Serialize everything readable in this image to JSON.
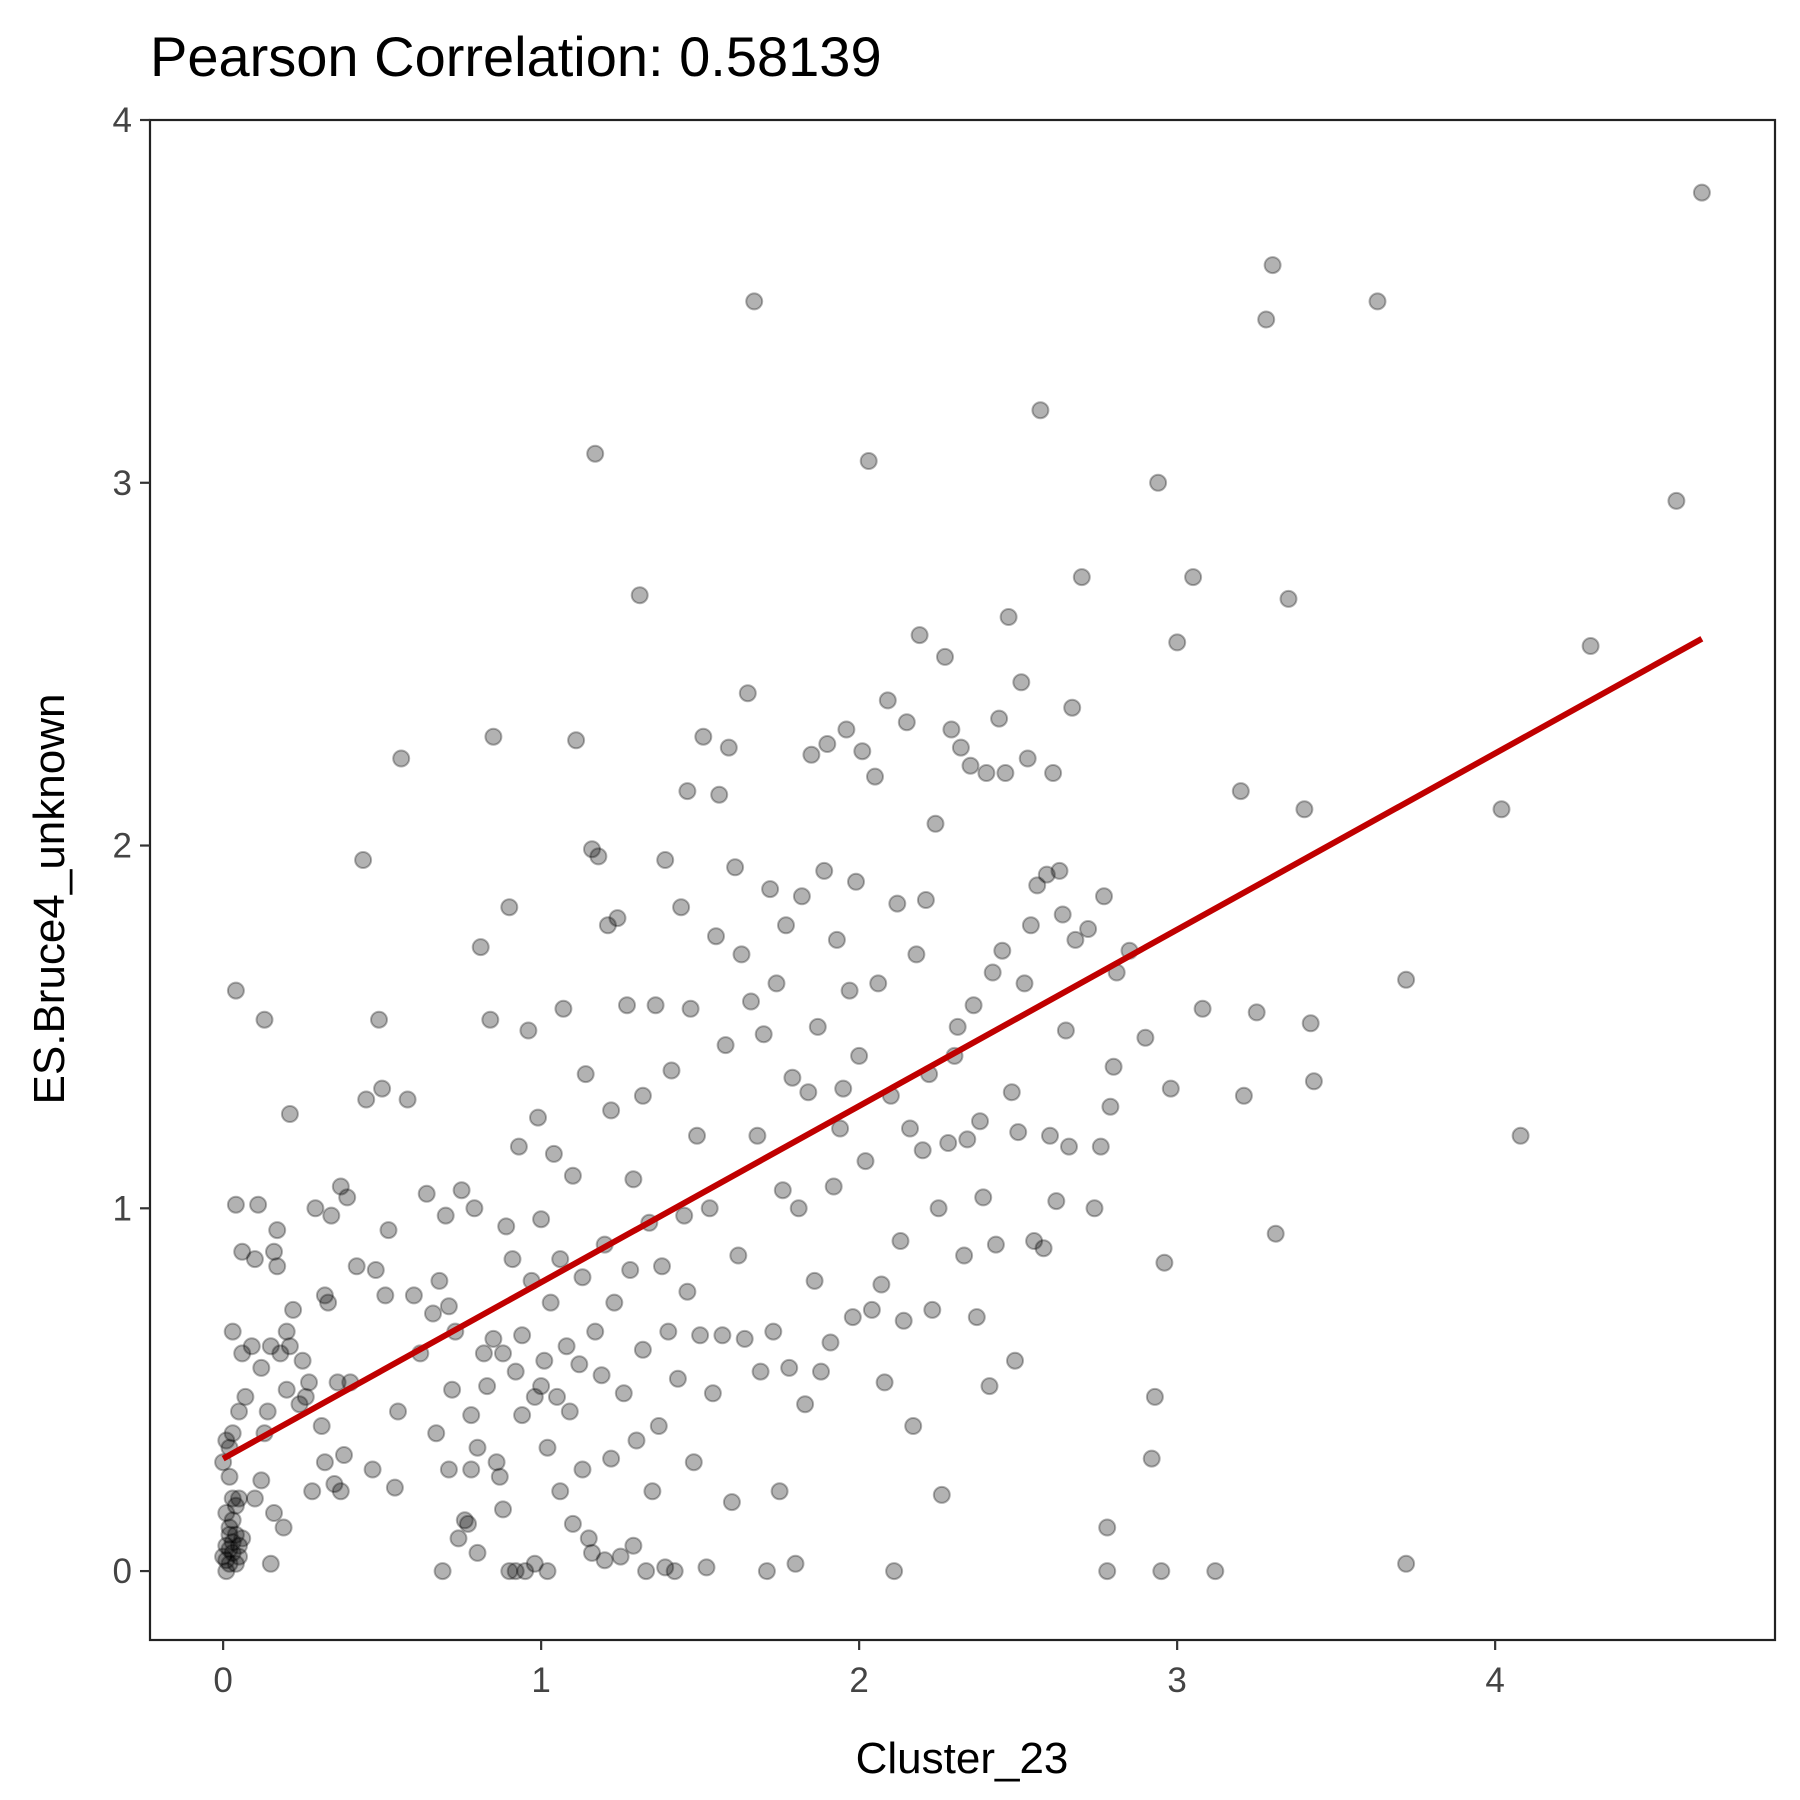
{
  "chart_data": {
    "type": "scatter",
    "title": "Pearson Correlation:  0.58139",
    "xlabel": "Cluster_23",
    "ylabel": "ES.Bruce4_unknown",
    "xlim": [
      -0.23,
      4.88
    ],
    "ylim": [
      -0.19,
      4.0
    ],
    "xticks": [
      0,
      1,
      2,
      3,
      4
    ],
    "yticks": [
      0,
      1,
      2,
      3,
      4
    ],
    "grid": false,
    "point_color": "#000000",
    "point_opacity": 0.3,
    "fit_line": {
      "color": "#C00000",
      "x": [
        0.0,
        4.65
      ],
      "y": [
        0.31,
        2.57
      ]
    },
    "points": [
      [
        0.01,
        0.0
      ],
      [
        0.02,
        0.02
      ],
      [
        0.01,
        0.03
      ],
      [
        0.03,
        0.05
      ],
      [
        0.02,
        0.06
      ],
      [
        0.0,
        0.04
      ],
      [
        0.04,
        0.02
      ],
      [
        0.03,
        0.08
      ],
      [
        0.02,
        0.1
      ],
      [
        0.05,
        0.04
      ],
      [
        0.01,
        0.07
      ],
      [
        0.04,
        0.1
      ],
      [
        0.02,
        0.12
      ],
      [
        0.03,
        0.14
      ],
      [
        0.05,
        0.07
      ],
      [
        0.06,
        0.09
      ],
      [
        0.01,
        0.16
      ],
      [
        0.04,
        0.18
      ],
      [
        0.03,
        0.2
      ],
      [
        0.05,
        0.2
      ],
      [
        0.02,
        0.34
      ],
      [
        0.01,
        0.36
      ],
      [
        0.03,
        0.38
      ],
      [
        0.0,
        0.3
      ],
      [
        0.02,
        0.26
      ],
      [
        0.03,
        0.66
      ],
      [
        0.05,
        0.44
      ],
      [
        0.06,
        0.6
      ],
      [
        0.04,
        1.6
      ],
      [
        0.04,
        1.01
      ],
      [
        0.06,
        0.88
      ],
      [
        0.07,
        0.48
      ],
      [
        0.1,
        0.86
      ],
      [
        0.09,
        0.62
      ],
      [
        0.11,
        1.01
      ],
      [
        0.12,
        0.25
      ],
      [
        0.1,
        0.2
      ],
      [
        0.13,
        0.38
      ],
      [
        0.12,
        0.56
      ],
      [
        0.14,
        0.44
      ],
      [
        0.15,
        0.62
      ],
      [
        0.13,
        1.52
      ],
      [
        0.16,
        0.88
      ],
      [
        0.17,
        0.84
      ],
      [
        0.15,
        0.02
      ],
      [
        0.16,
        0.16
      ],
      [
        0.18,
        0.6
      ],
      [
        0.17,
        0.94
      ],
      [
        0.19,
        0.12
      ],
      [
        0.2,
        0.5
      ],
      [
        0.21,
        1.26
      ],
      [
        0.2,
        0.66
      ],
      [
        0.22,
        0.72
      ],
      [
        0.21,
        0.62
      ],
      [
        0.24,
        0.46
      ],
      [
        0.25,
        0.58
      ],
      [
        0.26,
        0.48
      ],
      [
        0.27,
        0.52
      ],
      [
        0.28,
        0.22
      ],
      [
        0.29,
        1.0
      ],
      [
        0.31,
        0.4
      ],
      [
        0.32,
        0.76
      ],
      [
        0.33,
        0.74
      ],
      [
        0.32,
        0.3
      ],
      [
        0.34,
        0.98
      ],
      [
        0.35,
        0.24
      ],
      [
        0.36,
        0.52
      ],
      [
        0.37,
        1.06
      ],
      [
        0.37,
        0.22
      ],
      [
        0.38,
        0.32
      ],
      [
        0.39,
        1.03
      ],
      [
        0.4,
        0.52
      ],
      [
        0.42,
        0.84
      ],
      [
        0.44,
        1.96
      ],
      [
        0.45,
        1.3
      ],
      [
        0.47,
        0.28
      ],
      [
        0.48,
        0.83
      ],
      [
        0.49,
        1.52
      ],
      [
        0.5,
        1.33
      ],
      [
        0.51,
        0.76
      ],
      [
        0.52,
        0.94
      ],
      [
        0.54,
        0.23
      ],
      [
        0.55,
        0.44
      ],
      [
        0.56,
        2.24
      ],
      [
        0.58,
        1.3
      ],
      [
        0.6,
        0.76
      ],
      [
        0.62,
        0.6
      ],
      [
        0.64,
        1.04
      ],
      [
        0.66,
        0.71
      ],
      [
        0.67,
        0.38
      ],
      [
        0.68,
        0.8
      ],
      [
        0.69,
        0.0
      ],
      [
        0.7,
        0.98
      ],
      [
        0.71,
        0.73
      ],
      [
        0.71,
        0.28
      ],
      [
        0.72,
        0.5
      ],
      [
        0.73,
        0.66
      ],
      [
        0.74,
        0.09
      ],
      [
        0.75,
        1.05
      ],
      [
        0.76,
        0.14
      ],
      [
        0.77,
        0.13
      ],
      [
        0.78,
        0.28
      ],
      [
        0.78,
        0.43
      ],
      [
        0.79,
        1.0
      ],
      [
        0.8,
        0.34
      ],
      [
        0.8,
        0.05
      ],
      [
        0.81,
        1.72
      ],
      [
        0.82,
        0.6
      ],
      [
        0.83,
        0.51
      ],
      [
        0.84,
        1.52
      ],
      [
        0.85,
        0.64
      ],
      [
        0.85,
        2.3
      ],
      [
        0.86,
        0.3
      ],
      [
        0.87,
        0.26
      ],
      [
        0.88,
        0.6
      ],
      [
        0.88,
        0.17
      ],
      [
        0.89,
        0.95
      ],
      [
        0.9,
        0.0
      ],
      [
        0.9,
        1.83
      ],
      [
        0.91,
        0.86
      ],
      [
        0.92,
        0.55
      ],
      [
        0.92,
        0.0
      ],
      [
        0.93,
        1.17
      ],
      [
        0.94,
        0.43
      ],
      [
        0.94,
        0.65
      ],
      [
        0.95,
        0.0
      ],
      [
        0.96,
        1.49
      ],
      [
        0.97,
        0.8
      ],
      [
        0.98,
        0.48
      ],
      [
        0.98,
        0.02
      ],
      [
        0.99,
        1.25
      ],
      [
        1.0,
        0.51
      ],
      [
        1.0,
        0.97
      ],
      [
        1.01,
        0.58
      ],
      [
        1.02,
        0.34
      ],
      [
        1.02,
        0.0
      ],
      [
        1.03,
        0.74
      ],
      [
        1.04,
        1.15
      ],
      [
        1.05,
        0.48
      ],
      [
        1.06,
        0.22
      ],
      [
        1.06,
        0.86
      ],
      [
        1.07,
        1.55
      ],
      [
        1.08,
        0.62
      ],
      [
        1.09,
        0.44
      ],
      [
        1.1,
        1.09
      ],
      [
        1.1,
        0.13
      ],
      [
        1.11,
        2.29
      ],
      [
        1.12,
        0.57
      ],
      [
        1.13,
        0.81
      ],
      [
        1.13,
        0.28
      ],
      [
        1.14,
        1.37
      ],
      [
        1.15,
        0.09
      ],
      [
        1.16,
        1.99
      ],
      [
        1.16,
        0.05
      ],
      [
        1.17,
        3.08
      ],
      [
        1.17,
        0.66
      ],
      [
        1.18,
        1.97
      ],
      [
        1.19,
        0.54
      ],
      [
        1.2,
        0.9
      ],
      [
        1.2,
        0.03
      ],
      [
        1.21,
        1.78
      ],
      [
        1.22,
        0.31
      ],
      [
        1.22,
        1.27
      ],
      [
        1.23,
        0.74
      ],
      [
        1.24,
        1.8
      ],
      [
        1.25,
        0.04
      ],
      [
        1.26,
        0.49
      ],
      [
        1.27,
        1.56
      ],
      [
        1.28,
        0.83
      ],
      [
        1.29,
        0.07
      ],
      [
        1.29,
        1.08
      ],
      [
        1.3,
        0.36
      ],
      [
        1.31,
        2.69
      ],
      [
        1.32,
        0.61
      ],
      [
        1.32,
        1.31
      ],
      [
        1.33,
        0.0
      ],
      [
        1.34,
        0.96
      ],
      [
        1.35,
        0.22
      ],
      [
        1.36,
        1.56
      ],
      [
        1.37,
        0.4
      ],
      [
        1.38,
        0.84
      ],
      [
        1.39,
        1.96
      ],
      [
        1.39,
        0.01
      ],
      [
        1.4,
        0.66
      ],
      [
        1.41,
        1.38
      ],
      [
        1.42,
        0.0
      ],
      [
        1.43,
        0.53
      ],
      [
        1.44,
        1.83
      ],
      [
        1.45,
        0.98
      ],
      [
        1.46,
        2.15
      ],
      [
        1.46,
        0.77
      ],
      [
        1.47,
        1.55
      ],
      [
        1.48,
        0.3
      ],
      [
        1.49,
        1.2
      ],
      [
        1.5,
        0.65
      ],
      [
        1.51,
        2.3
      ],
      [
        1.52,
        0.01
      ],
      [
        1.53,
        1.0
      ],
      [
        1.54,
        0.49
      ],
      [
        1.55,
        1.75
      ],
      [
        1.56,
        2.14
      ],
      [
        1.57,
        0.65
      ],
      [
        1.58,
        1.45
      ],
      [
        1.59,
        2.27
      ],
      [
        1.6,
        0.19
      ],
      [
        1.61,
        1.94
      ],
      [
        1.62,
        0.87
      ],
      [
        1.63,
        1.7
      ],
      [
        1.64,
        0.64
      ],
      [
        1.65,
        2.42
      ],
      [
        1.66,
        1.57
      ],
      [
        1.67,
        3.5
      ],
      [
        1.68,
        1.2
      ],
      [
        1.69,
        0.55
      ],
      [
        1.7,
        1.48
      ],
      [
        1.71,
        0.0
      ],
      [
        1.72,
        1.88
      ],
      [
        1.73,
        0.66
      ],
      [
        1.74,
        1.62
      ],
      [
        1.75,
        0.22
      ],
      [
        1.76,
        1.05
      ],
      [
        1.77,
        1.78
      ],
      [
        1.78,
        0.56
      ],
      [
        1.79,
        1.36
      ],
      [
        1.8,
        0.02
      ],
      [
        1.81,
        1.0
      ],
      [
        1.82,
        1.86
      ],
      [
        1.83,
        0.46
      ],
      [
        1.84,
        1.32
      ],
      [
        1.85,
        2.25
      ],
      [
        1.86,
        0.8
      ],
      [
        1.87,
        1.5
      ],
      [
        1.88,
        0.55
      ],
      [
        1.89,
        1.93
      ],
      [
        1.9,
        2.28
      ],
      [
        1.91,
        0.63
      ],
      [
        1.92,
        1.06
      ],
      [
        1.93,
        1.74
      ],
      [
        1.94,
        1.22
      ],
      [
        1.95,
        1.33
      ],
      [
        1.96,
        2.32
      ],
      [
        1.97,
        1.6
      ],
      [
        1.98,
        0.7
      ],
      [
        1.99,
        1.9
      ],
      [
        2.0,
        1.42
      ],
      [
        2.01,
        2.26
      ],
      [
        2.02,
        1.13
      ],
      [
        2.03,
        3.06
      ],
      [
        2.04,
        0.72
      ],
      [
        2.05,
        2.19
      ],
      [
        2.06,
        1.62
      ],
      [
        2.07,
        0.79
      ],
      [
        2.08,
        0.52
      ],
      [
        2.09,
        2.4
      ],
      [
        2.1,
        1.31
      ],
      [
        2.11,
        0.0
      ],
      [
        2.12,
        1.84
      ],
      [
        2.13,
        0.91
      ],
      [
        2.14,
        0.69
      ],
      [
        2.15,
        2.34
      ],
      [
        2.16,
        1.22
      ],
      [
        2.17,
        0.4
      ],
      [
        2.18,
        1.7
      ],
      [
        2.19,
        2.58
      ],
      [
        2.2,
        1.16
      ],
      [
        2.21,
        1.85
      ],
      [
        2.22,
        1.37
      ],
      [
        2.23,
        0.72
      ],
      [
        2.24,
        2.06
      ],
      [
        2.25,
        1.0
      ],
      [
        2.26,
        0.21
      ],
      [
        2.27,
        2.52
      ],
      [
        2.28,
        1.18
      ],
      [
        2.29,
        2.32
      ],
      [
        2.3,
        1.42
      ],
      [
        2.31,
        1.5
      ],
      [
        2.32,
        2.27
      ],
      [
        2.33,
        0.87
      ],
      [
        2.34,
        1.19
      ],
      [
        2.35,
        2.22
      ],
      [
        2.36,
        1.56
      ],
      [
        2.37,
        0.7
      ],
      [
        2.38,
        1.24
      ],
      [
        2.39,
        1.03
      ],
      [
        2.4,
        2.2
      ],
      [
        2.41,
        0.51
      ],
      [
        2.42,
        1.65
      ],
      [
        2.43,
        0.9
      ],
      [
        2.44,
        2.35
      ],
      [
        2.45,
        1.71
      ],
      [
        2.46,
        2.2
      ],
      [
        2.47,
        2.63
      ],
      [
        2.48,
        1.32
      ],
      [
        2.49,
        0.58
      ],
      [
        2.5,
        1.21
      ],
      [
        2.51,
        2.45
      ],
      [
        2.52,
        1.62
      ],
      [
        2.53,
        2.24
      ],
      [
        2.54,
        1.78
      ],
      [
        2.55,
        0.91
      ],
      [
        2.56,
        1.89
      ],
      [
        2.57,
        3.2
      ],
      [
        2.58,
        0.89
      ],
      [
        2.59,
        1.92
      ],
      [
        2.6,
        1.2
      ],
      [
        2.61,
        2.2
      ],
      [
        2.62,
        1.02
      ],
      [
        2.63,
        1.93
      ],
      [
        2.64,
        1.81
      ],
      [
        2.65,
        1.49
      ],
      [
        2.66,
        1.17
      ],
      [
        2.67,
        2.38
      ],
      [
        2.68,
        1.74
      ],
      [
        2.7,
        2.74
      ],
      [
        2.72,
        1.77
      ],
      [
        2.74,
        1.0
      ],
      [
        2.76,
        1.17
      ],
      [
        2.77,
        1.86
      ],
      [
        2.78,
        0.12
      ],
      [
        2.78,
        0.0
      ],
      [
        2.79,
        1.28
      ],
      [
        2.8,
        1.39
      ],
      [
        2.81,
        1.65
      ],
      [
        2.85,
        1.71
      ],
      [
        2.9,
        1.47
      ],
      [
        2.92,
        0.31
      ],
      [
        2.93,
        0.48
      ],
      [
        2.94,
        3.0
      ],
      [
        2.95,
        0.0
      ],
      [
        2.96,
        0.85
      ],
      [
        2.98,
        1.33
      ],
      [
        3.0,
        2.56
      ],
      [
        3.05,
        2.74
      ],
      [
        3.08,
        1.55
      ],
      [
        3.12,
        0.0
      ],
      [
        3.2,
        2.15
      ],
      [
        3.21,
        1.31
      ],
      [
        3.25,
        1.54
      ],
      [
        3.28,
        3.45
      ],
      [
        3.31,
        0.93
      ],
      [
        3.3,
        3.6
      ],
      [
        3.35,
        2.68
      ],
      [
        3.4,
        2.1
      ],
      [
        3.42,
        1.51
      ],
      [
        3.43,
        1.35
      ],
      [
        3.63,
        3.5
      ],
      [
        3.72,
        1.63
      ],
      [
        3.72,
        0.02
      ],
      [
        4.02,
        2.1
      ],
      [
        4.08,
        1.2
      ],
      [
        4.3,
        2.55
      ],
      [
        4.57,
        2.95
      ],
      [
        4.65,
        3.8
      ]
    ]
  }
}
